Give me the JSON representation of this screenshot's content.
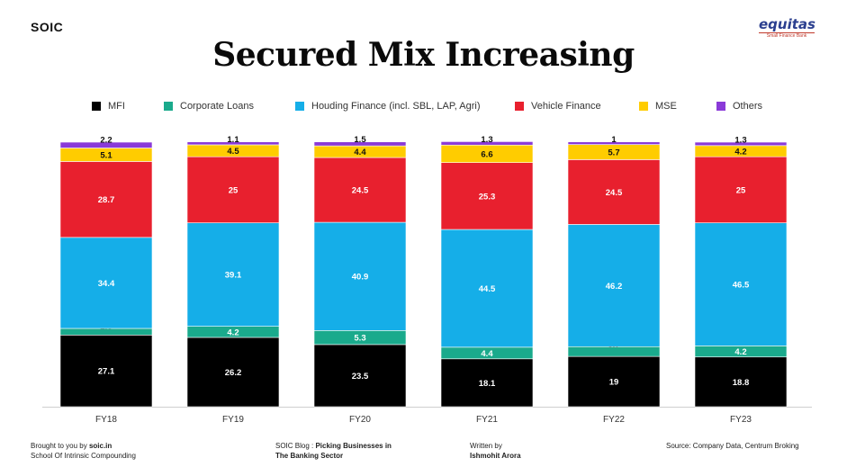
{
  "header": {
    "brand": "SOIC",
    "logo_text": "equitas",
    "logo_subtext": "Small Finance Bank"
  },
  "colors": {
    "MFI": "#000000",
    "Corporate Loans": "#1aaa8c",
    "Vehicle Finance": "#e8202e",
    "Houding Finance (incl. SBL, LAP, Agri)": "#15aee8",
    "MSE": "#ffcc00",
    "Others": "#8a3ad8"
  },
  "chart_data": {
    "type": "bar",
    "stacked": true,
    "title": "Secured Mix Increasing",
    "categories": [
      "FY18",
      "FY19",
      "FY20",
      "FY21",
      "FY22",
      "FY23"
    ],
    "series": [
      {
        "name": "MFI",
        "values": [
          27.1,
          26.2,
          23.5,
          18.1,
          19,
          18.8
        ]
      },
      {
        "name": "Corporate Loans",
        "values": [
          2.5,
          4.2,
          5.3,
          4.4,
          3.7,
          4.2
        ]
      },
      {
        "name": "Houding Finance (incl. SBL, LAP, Agri)",
        "values": [
          34.4,
          39.1,
          40.9,
          44.5,
          46.2,
          46.5
        ]
      },
      {
        "name": "Vehicle Finance",
        "values": [
          28.7,
          25,
          24.5,
          25.3,
          24.5,
          25
        ]
      },
      {
        "name": "MSE",
        "values": [
          5.1,
          4.5,
          4.4,
          6.6,
          5.7,
          4.2
        ]
      },
      {
        "name": "Others",
        "values": [
          2.2,
          1.1,
          1.5,
          1.3,
          1,
          1.3
        ]
      }
    ],
    "legend_order": [
      "MFI",
      "Corporate Loans",
      "Houding Finance (incl. SBL, LAP, Agri)",
      "Vehicle Finance",
      "MSE",
      "Others"
    ],
    "legend_position": "top",
    "ylim": [
      0,
      100
    ],
    "grid": false,
    "xlabel": "",
    "ylabel": ""
  },
  "footer": {
    "brought_prefix": "Brought to you by ",
    "brought_site": "soic.in",
    "brought_line2": "School Of Intrinsic Compounding",
    "blog_prefix": "SOIC Blog : ",
    "blog_title_line1": "Picking Businesses in",
    "blog_title_line2": "The Banking Sector",
    "written_label": "Written by",
    "author": "Ishmohit Arora",
    "source": "Source: Company Data, Centrum Broking"
  }
}
